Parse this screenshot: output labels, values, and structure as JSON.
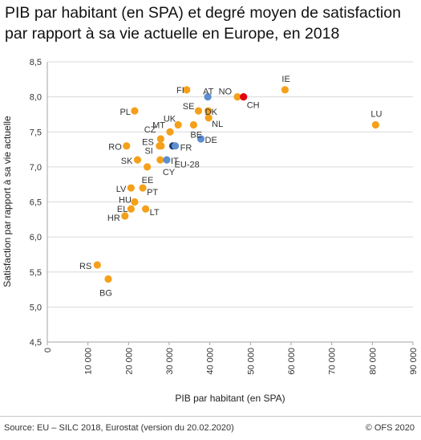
{
  "title": {
    "line1": "PIB par habitant (en SPA) et degré moyen de satisfaction",
    "line2": "par rapport à sa vie actuelle en Europe, en 2018"
  },
  "footer": {
    "source": "Source: EU – SILC 2018, Eurostat (version du 20.02.2020)",
    "copyright": "© OFS 2020"
  },
  "colors": {
    "default": "#F5A01A",
    "highlight_blue": "#5B8FD1",
    "eu_dark": "#1F3864",
    "switzerland": "#E3000F",
    "gridline": "#d9d9d9",
    "axis": "#a6a6a6"
  },
  "chart_data": {
    "type": "scatter",
    "xlabel": "PIB par habitant (en SPA)",
    "ylabel": "Satisfaction par rapport à sa vie actuelle",
    "xlim": [
      0,
      90000
    ],
    "ylim": [
      4.5,
      8.5
    ],
    "xticks": [
      0,
      10000,
      20000,
      30000,
      40000,
      50000,
      60000,
      70000,
      80000,
      90000
    ],
    "xtick_labels": [
      "0",
      "10 000",
      "20 000",
      "30 000",
      "40 000",
      "50 000",
      "60 000",
      "70 000",
      "80 000",
      "90 000"
    ],
    "yticks": [
      4.5,
      5.0,
      5.5,
      6.0,
      6.5,
      7.0,
      7.5,
      8.0,
      8.5
    ],
    "ytick_labels": [
      "4,5",
      "5,0",
      "5,5",
      "6,0",
      "6,5",
      "7,0",
      "7,5",
      "8,0",
      "8,5"
    ],
    "grid": "horizontal",
    "points": [
      {
        "label": "AT",
        "x": 39500,
        "y": 8.0,
        "color": "highlight_blue"
      },
      {
        "label": "FI",
        "x": 34300,
        "y": 8.1,
        "color": "default"
      },
      {
        "label": "NO",
        "x": 46800,
        "y": 8.0,
        "color": "default"
      },
      {
        "label": "CH",
        "x": 48300,
        "y": 8.0,
        "color": "switzerland"
      },
      {
        "label": "IE",
        "x": 58500,
        "y": 8.1,
        "color": "default"
      },
      {
        "label": "LU",
        "x": 80800,
        "y": 7.6,
        "color": "default"
      },
      {
        "label": "PL",
        "x": 21500,
        "y": 7.8,
        "color": "default"
      },
      {
        "label": "SE",
        "x": 37200,
        "y": 7.8,
        "color": "default"
      },
      {
        "label": "DK",
        "x": 39600,
        "y": 7.8,
        "color": "default"
      },
      {
        "label": "NL",
        "x": 39700,
        "y": 7.7,
        "color": "default"
      },
      {
        "label": "UK",
        "x": 32200,
        "y": 7.6,
        "color": "default"
      },
      {
        "label": "BE",
        "x": 36000,
        "y": 7.6,
        "color": "default"
      },
      {
        "label": "CZ",
        "x": 27900,
        "y": 7.4,
        "color": "default"
      },
      {
        "label": "MT",
        "x": 30200,
        "y": 7.5,
        "color": "default"
      },
      {
        "label": "DE",
        "x": 37800,
        "y": 7.4,
        "color": "highlight_blue"
      },
      {
        "label": "ES",
        "x": 27600,
        "y": 7.3,
        "color": "default"
      },
      {
        "label": "SI",
        "x": 28000,
        "y": 7.3,
        "color": "default"
      },
      {
        "label": "EU-28",
        "x": 30900,
        "y": 7.3,
        "color": "eu_dark"
      },
      {
        "label": "FR",
        "x": 31500,
        "y": 7.3,
        "color": "highlight_blue"
      },
      {
        "label": "RO",
        "x": 19500,
        "y": 7.3,
        "color": "default"
      },
      {
        "label": "SK",
        "x": 22200,
        "y": 7.1,
        "color": "default"
      },
      {
        "label": "IT",
        "x": 29400,
        "y": 7.1,
        "color": "highlight_blue"
      },
      {
        "label": "CY",
        "x": 27800,
        "y": 7.1,
        "color": "default"
      },
      {
        "label": "EE",
        "x": 24600,
        "y": 7.0,
        "color": "default"
      },
      {
        "label": "LV",
        "x": 20600,
        "y": 6.7,
        "color": "default"
      },
      {
        "label": "PT",
        "x": 23500,
        "y": 6.7,
        "color": "default"
      },
      {
        "label": "HU",
        "x": 21500,
        "y": 6.5,
        "color": "default"
      },
      {
        "label": "EL",
        "x": 20600,
        "y": 6.4,
        "color": "default"
      },
      {
        "label": "LT",
        "x": 24200,
        "y": 6.4,
        "color": "default"
      },
      {
        "label": "HR",
        "x": 19100,
        "y": 6.3,
        "color": "default"
      },
      {
        "label": "RS",
        "x": 12300,
        "y": 5.6,
        "color": "default"
      },
      {
        "label": "BG",
        "x": 15000,
        "y": 5.4,
        "color": "default"
      }
    ]
  }
}
